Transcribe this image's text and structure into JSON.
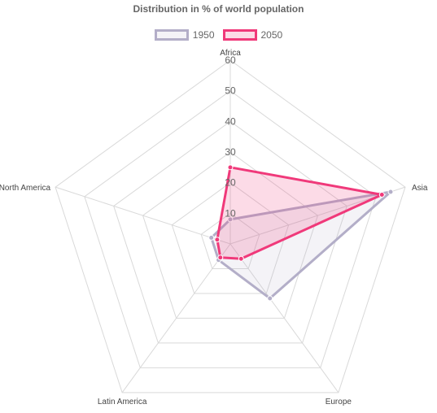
{
  "chart_data": {
    "type": "radar",
    "title": "Distribution in % of world population",
    "categories": [
      "Africa",
      "Asia",
      "Europe",
      "Latin America",
      "North America"
    ],
    "series": [
      {
        "name": "1950",
        "values": [
          8.0,
          55.0,
          22.0,
          6.5,
          6.5
        ],
        "color": "#b3aec8",
        "fill": "rgba(179,174,200,0.15)"
      },
      {
        "name": "2050",
        "values": [
          25.0,
          52.0,
          6.0,
          5.5,
          4.5
        ],
        "color": "#f0397a",
        "fill": "rgba(240,57,122,0.18)"
      }
    ],
    "r_ticks": [
      10,
      20,
      30,
      40,
      50,
      60
    ],
    "r_range": [
      0,
      60
    ],
    "grid": true,
    "legend_position": "top"
  }
}
